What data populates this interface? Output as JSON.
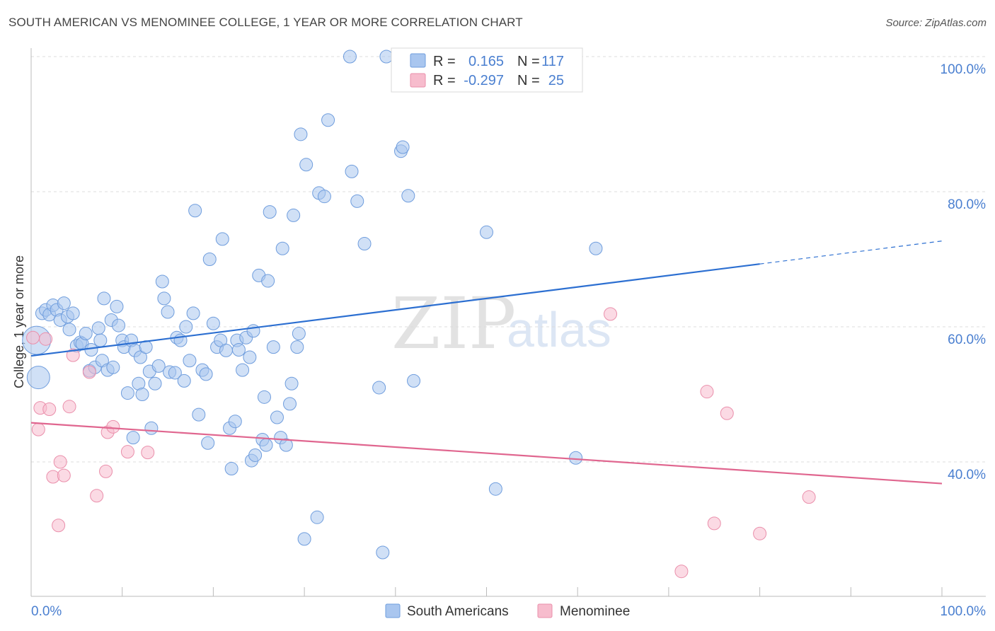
{
  "title": "SOUTH AMERICAN VS MENOMINEE COLLEGE, 1 YEAR OR MORE CORRELATION CHART",
  "source": "Source: ZipAtlas.com",
  "watermark": {
    "zip": "ZIP",
    "atlas": "atlas"
  },
  "colors": {
    "blue_fill": "#a9c6ef",
    "blue_stroke": "#6f9ddd",
    "blue_line": "#2c6fd1",
    "pink_fill": "#f7bccd",
    "pink_stroke": "#ea8fab",
    "pink_line": "#e0668f",
    "grid": "#dcdcdc",
    "tick_label": "#4a7fd0"
  },
  "chart_data": {
    "type": "scatter",
    "title": "SOUTH AMERICAN VS MENOMINEE COLLEGE, 1 YEAR OR MORE CORRELATION CHART",
    "xlabel": "",
    "ylabel": "College, 1 year or more",
    "xlim": [
      0,
      100
    ],
    "ylim": [
      20,
      102
    ],
    "x_tick_labels": [
      {
        "value": 0,
        "label": "0.0%"
      },
      {
        "value": 100,
        "label": "100.0%"
      }
    ],
    "y_ticks": [
      {
        "value": 40,
        "label": "40.0%"
      },
      {
        "value": 60,
        "label": "60.0%"
      },
      {
        "value": 80,
        "label": "80.0%"
      },
      {
        "value": 100,
        "label": "100.0%"
      }
    ],
    "legend": [
      {
        "series": "South Americans",
        "r_label": "R =",
        "r_value": "0.165",
        "n_label": "N =",
        "n_value": "117"
      },
      {
        "series": "Menominee",
        "r_label": "R =",
        "r_value": "-0.297",
        "n_label": "N =",
        "n_value": "25"
      }
    ],
    "series": [
      {
        "name": "South Americans",
        "color": "blue",
        "trend": {
          "x0": 0,
          "y0": 55.7,
          "x1": 80,
          "y1": 69.3,
          "dash_to_x": 100,
          "dash_to_y": 72.7
        },
        "points": [
          [
            0.6,
            58
          ],
          [
            0.8,
            52.5
          ],
          [
            1.2,
            62
          ],
          [
            1.6,
            62.5
          ],
          [
            2.0,
            61.8
          ],
          [
            2.4,
            63.2
          ],
          [
            2.8,
            62.5
          ],
          [
            3.2,
            61
          ],
          [
            3.6,
            63.5
          ],
          [
            4.0,
            61.5
          ],
          [
            4.2,
            59.6
          ],
          [
            4.6,
            62
          ],
          [
            5.0,
            57.2
          ],
          [
            5.4,
            57.7
          ],
          [
            5.6,
            57.5
          ],
          [
            6.0,
            59
          ],
          [
            6.4,
            53.5
          ],
          [
            6.6,
            56.6
          ],
          [
            7.0,
            54
          ],
          [
            7.4,
            59.8
          ],
          [
            7.6,
            58
          ],
          [
            7.8,
            55
          ],
          [
            8.0,
            64.2
          ],
          [
            8.4,
            53.6
          ],
          [
            8.8,
            61
          ],
          [
            9.0,
            54
          ],
          [
            9.4,
            63
          ],
          [
            9.6,
            60.2
          ],
          [
            10.0,
            58
          ],
          [
            10.2,
            57
          ],
          [
            10.6,
            50.2
          ],
          [
            11.0,
            58
          ],
          [
            11.2,
            43.6
          ],
          [
            11.4,
            56.5
          ],
          [
            11.8,
            51.6
          ],
          [
            12.0,
            55.5
          ],
          [
            12.2,
            50
          ],
          [
            12.6,
            57
          ],
          [
            13.0,
            53.4
          ],
          [
            13.2,
            45
          ],
          [
            13.6,
            51.6
          ],
          [
            14.0,
            54.2
          ],
          [
            14.4,
            66.7
          ],
          [
            14.6,
            64.2
          ],
          [
            15.0,
            62.2
          ],
          [
            15.2,
            53.3
          ],
          [
            15.8,
            53.2
          ],
          [
            16.0,
            58.4
          ],
          [
            16.4,
            58
          ],
          [
            16.8,
            52
          ],
          [
            17.0,
            60
          ],
          [
            17.4,
            55
          ],
          [
            17.8,
            62
          ],
          [
            18.0,
            77.2
          ],
          [
            18.4,
            47
          ],
          [
            18.8,
            53.6
          ],
          [
            19.2,
            53
          ],
          [
            19.4,
            42.8
          ],
          [
            19.6,
            70
          ],
          [
            20.0,
            60.5
          ],
          [
            20.4,
            57
          ],
          [
            20.8,
            58
          ],
          [
            21.0,
            73
          ],
          [
            21.4,
            56.5
          ],
          [
            21.8,
            45
          ],
          [
            22.0,
            39
          ],
          [
            22.4,
            46
          ],
          [
            22.6,
            58
          ],
          [
            22.8,
            56.6
          ],
          [
            23.2,
            53.6
          ],
          [
            23.6,
            58.4
          ],
          [
            24.0,
            55.5
          ],
          [
            24.2,
            40.2
          ],
          [
            24.4,
            59.4
          ],
          [
            24.6,
            41
          ],
          [
            25.0,
            67.6
          ],
          [
            25.4,
            43.3
          ],
          [
            25.6,
            49.6
          ],
          [
            25.8,
            42.5
          ],
          [
            26.0,
            66.8
          ],
          [
            26.2,
            77
          ],
          [
            26.6,
            57
          ],
          [
            27.0,
            46.6
          ],
          [
            27.4,
            43.6
          ],
          [
            27.6,
            71.6
          ],
          [
            28.0,
            42.5
          ],
          [
            28.4,
            48.6
          ],
          [
            28.6,
            51.6
          ],
          [
            28.8,
            76.5
          ],
          [
            29.2,
            57
          ],
          [
            29.4,
            59
          ],
          [
            29.6,
            88.5
          ],
          [
            30.0,
            28.6
          ],
          [
            30.2,
            84
          ],
          [
            31.4,
            31.8
          ],
          [
            31.6,
            79.8
          ],
          [
            32.2,
            79.3
          ],
          [
            32.6,
            90.6
          ],
          [
            35.0,
            100
          ],
          [
            35.2,
            83
          ],
          [
            35.8,
            78.6
          ],
          [
            36.6,
            72.3
          ],
          [
            38.6,
            26.6
          ],
          [
            38.2,
            51
          ],
          [
            39.0,
            100
          ],
          [
            40.6,
            86
          ],
          [
            40.8,
            86.6
          ],
          [
            41.4,
            79.4
          ],
          [
            42.0,
            52
          ],
          [
            50.0,
            74
          ],
          [
            51.0,
            36
          ],
          [
            59.8,
            40.6
          ],
          [
            62.0,
            71.6
          ]
        ],
        "sizes": {
          "0": 40,
          "1": 32
        }
      },
      {
        "name": "Menominee",
        "color": "pink",
        "trend": {
          "x0": 0,
          "y0": 45.8,
          "x1": 100,
          "y1": 36.8
        },
        "points": [
          [
            0.2,
            58.4
          ],
          [
            0.8,
            44.8
          ],
          [
            1.0,
            48
          ],
          [
            1.6,
            58.2
          ],
          [
            2.0,
            47.8
          ],
          [
            2.4,
            37.8
          ],
          [
            3.0,
            30.6
          ],
          [
            3.2,
            40
          ],
          [
            3.6,
            38
          ],
          [
            4.2,
            48.2
          ],
          [
            4.6,
            55.8
          ],
          [
            6.4,
            53.3
          ],
          [
            7.2,
            35
          ],
          [
            8.2,
            38.6
          ],
          [
            8.4,
            44.4
          ],
          [
            9.0,
            45.2
          ],
          [
            10.6,
            41.5
          ],
          [
            12.8,
            41.4
          ],
          [
            63.6,
            61.9
          ],
          [
            71.4,
            23.8
          ],
          [
            74.2,
            50.4
          ],
          [
            75.0,
            30.9
          ],
          [
            76.4,
            47.2
          ],
          [
            80.0,
            29.4
          ],
          [
            85.4,
            34.8
          ]
        ]
      }
    ]
  }
}
